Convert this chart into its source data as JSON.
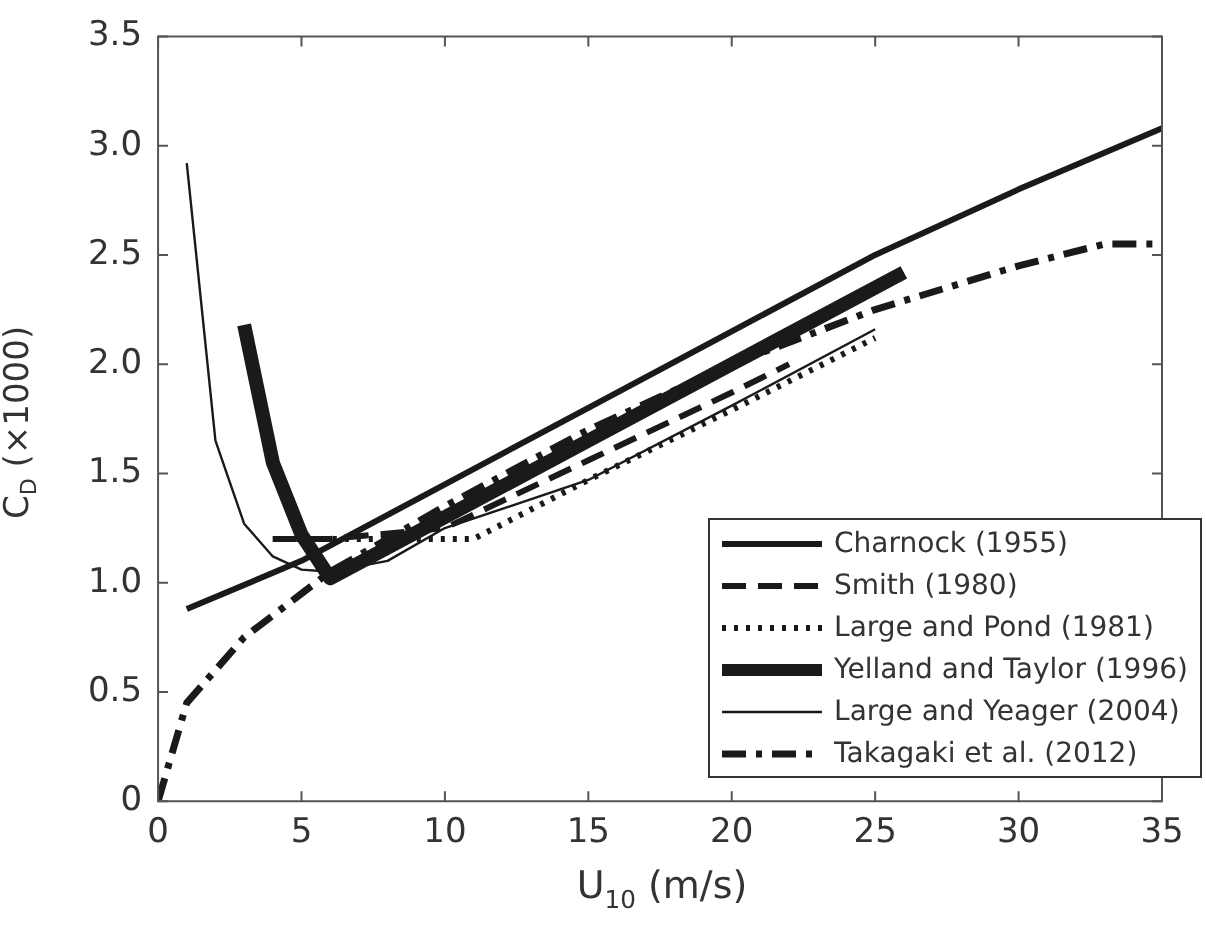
{
  "chart_data": {
    "type": "line",
    "xlabel": "U$_{10}$ (m/s)",
    "ylabel": "C$_{D}$ (×1000)",
    "xlim": [
      0,
      35
    ],
    "xticks": [
      0,
      5,
      10,
      15,
      20,
      25,
      30,
      35
    ],
    "ylim": [
      0,
      3.5
    ],
    "yticks": [
      0,
      0.5,
      {
        "value": 1,
        "label": "1.0"
      },
      1.5,
      {
        "value": 2,
        "label": "2.0"
      },
      2.5,
      {
        "value": 3,
        "label": "3.0"
      },
      3.5
    ],
    "grid": false,
    "legend": "bottom right",
    "marker": "none",
    "series": [
      {
        "name": "Charnock (1955)",
        "color": "#1a1a1a",
        "line_style": "solid",
        "x": [
          1,
          5,
          10,
          15,
          20,
          25,
          30,
          35
        ],
        "values": [
          0.88,
          1.1,
          1.45,
          1.8,
          2.15,
          2.5,
          2.8,
          3.08
        ]
      },
      {
        "name": "Smith (1980)",
        "color": "#1a1a1a",
        "line_style": "dashed",
        "x": [
          4,
          6,
          10,
          15,
          20,
          22
        ],
        "values": [
          1.2,
          1.2,
          1.25,
          1.56,
          1.87,
          2.0
        ]
      },
      {
        "name": "Large and Pond (1981)",
        "color": "#1a1a1a",
        "line_style": "dotted",
        "x": [
          4,
          11,
          15,
          20,
          25
        ],
        "values": [
          1.2,
          1.2,
          1.47,
          1.79,
          2.12
        ]
      },
      {
        "name": "Yelland and Taylor (1996)",
        "color": "#1a1a1a",
        "line_style": "solid",
        "x": [
          3,
          4,
          5,
          6,
          10,
          15,
          20,
          26
        ],
        "values": [
          2.18,
          1.55,
          1.22,
          1.02,
          1.3,
          1.65,
          2.0,
          2.42
        ]
      },
      {
        "name": "Large and Yeager (2004)",
        "color": "#1a1a1a",
        "line_style": "solid",
        "x": [
          1,
          2,
          3,
          4,
          5,
          6,
          8,
          10,
          15,
          20,
          25
        ],
        "values": [
          2.92,
          1.65,
          1.27,
          1.12,
          1.06,
          1.05,
          1.1,
          1.25,
          1.47,
          1.81,
          2.16
        ]
      },
      {
        "name": "Takagaki et al. (2012)",
        "color": "#1a1a1a",
        "line_style": "dashdot",
        "x": [
          0,
          1,
          2,
          3,
          5,
          6,
          10,
          15,
          20,
          25,
          30,
          33,
          35
        ],
        "values": [
          0,
          0.45,
          0.6,
          0.75,
          0.95,
          1.05,
          1.35,
          1.7,
          2.0,
          2.25,
          2.45,
          2.55,
          2.55
        ]
      }
    ]
  }
}
